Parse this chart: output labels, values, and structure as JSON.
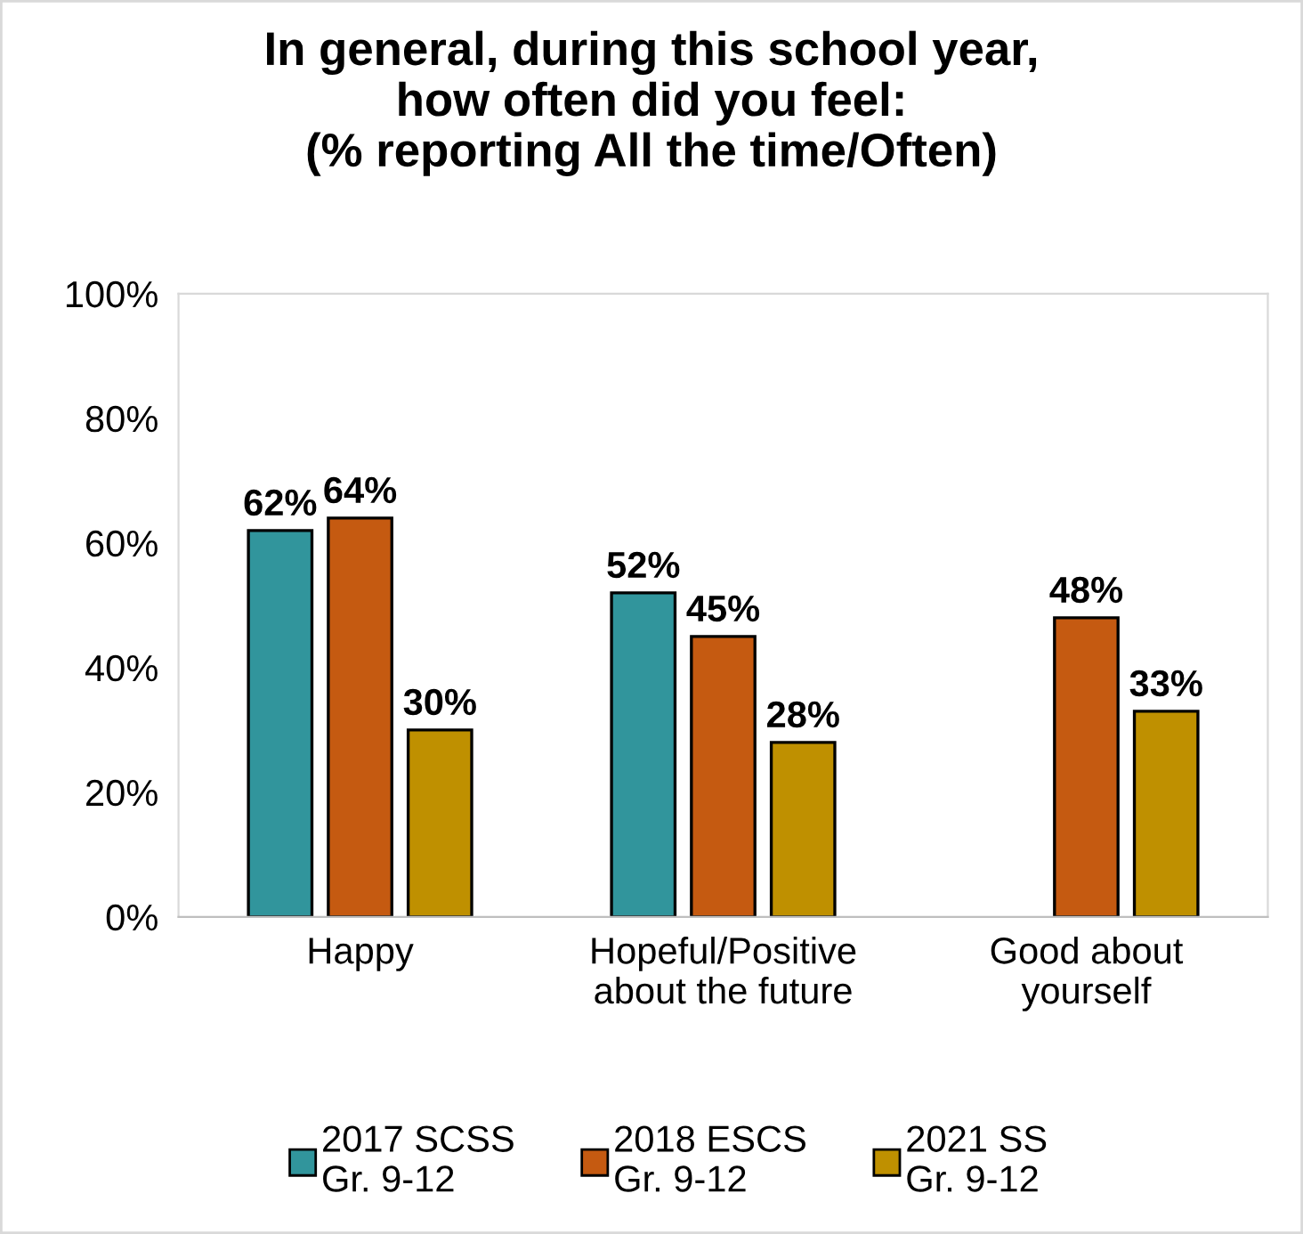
{
  "chart_data": {
    "type": "bar",
    "title": "In general, during this school year,\nhow often did you feel:\n(% reporting All the time/Often)",
    "categories": [
      "Happy",
      "Hopeful/Positive\nabout the future",
      "Good about\nyourself"
    ],
    "series": [
      {
        "name": "2017 SCSS\nGr. 9-12",
        "color": "#31959c",
        "values": [
          62,
          52,
          null
        ],
        "value_labels": [
          "62%",
          "52%",
          null
        ]
      },
      {
        "name": "2018 ESCS\nGr. 9-12",
        "color": "#c55a11",
        "values": [
          64,
          45,
          48
        ],
        "value_labels": [
          "64%",
          "45%",
          "48%"
        ]
      },
      {
        "name": "2021 SS\nGr. 9-12",
        "color": "#bf9000",
        "values": [
          30,
          28,
          33
        ],
        "value_labels": [
          "30%",
          "28%",
          "33%"
        ]
      }
    ],
    "ylim": [
      0,
      100
    ],
    "yticks": [
      {
        "value": 0,
        "label": "0%"
      },
      {
        "value": 20,
        "label": "20%"
      },
      {
        "value": 40,
        "label": "40%"
      },
      {
        "value": 60,
        "label": "60%"
      },
      {
        "value": 80,
        "label": "80%"
      },
      {
        "value": 100,
        "label": "100%"
      }
    ],
    "grid": false,
    "legend": "bottom"
  }
}
